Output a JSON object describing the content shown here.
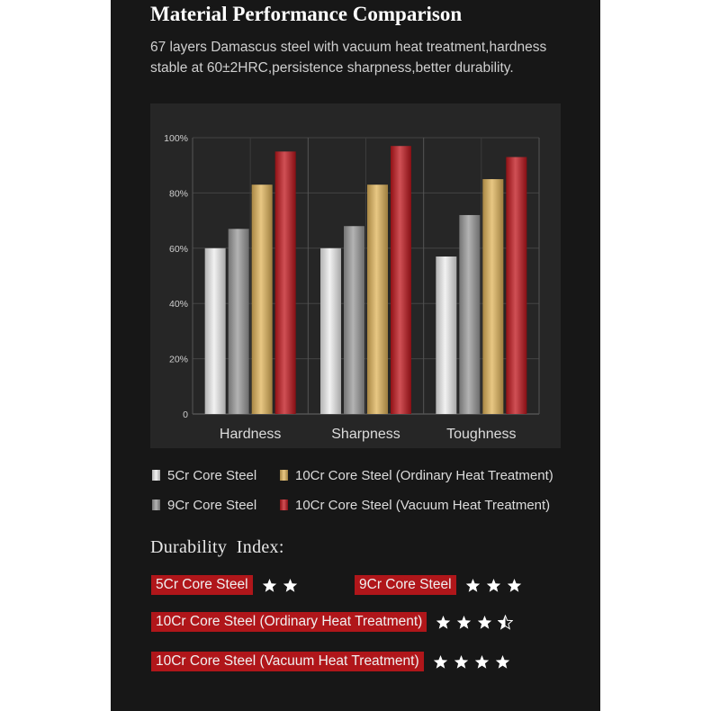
{
  "header": {
    "title": "Material Performance Comparison",
    "subtitle": "67 layers Damascus steel with vacuum heat treatment,hardness stable at 60±2HRC,persistence sharpness,better durability."
  },
  "chart_data": {
    "type": "bar",
    "categories": [
      "Hardness",
      "Sharpness",
      "Toughness"
    ],
    "y_ticks": [
      "0",
      "20%",
      "40%",
      "60%",
      "80%",
      "100%"
    ],
    "ylim": [
      0,
      100
    ],
    "grid": true,
    "legend_position": "bottom",
    "series": [
      {
        "name": "5Cr Core Steel",
        "values": [
          60,
          60,
          57
        ],
        "color": "#eeeeee"
      },
      {
        "name": "9Cr Core Steel",
        "values": [
          67,
          68,
          72
        ],
        "color": "#9a9a9a"
      },
      {
        "name": "10Cr Core Steel (Ordinary Heat Treatment)",
        "values": [
          83,
          83,
          85
        ],
        "color": "#e0b45a"
      },
      {
        "name": "10Cr Core Steel (Vacuum Heat Treatment)",
        "values": [
          95,
          97,
          93
        ],
        "color": "#c0161c"
      }
    ]
  },
  "durability": {
    "title": "Durability  Index:",
    "items": [
      {
        "label": "5Cr Core Steel",
        "stars": 2
      },
      {
        "label": "9Cr Core Steel",
        "stars": 3
      },
      {
        "label": "10Cr Core Steel (Ordinary Heat Treatment)",
        "stars": 3.5
      },
      {
        "label": "10Cr Core Steel (Vacuum Heat Treatment)",
        "stars": 4
      }
    ]
  }
}
